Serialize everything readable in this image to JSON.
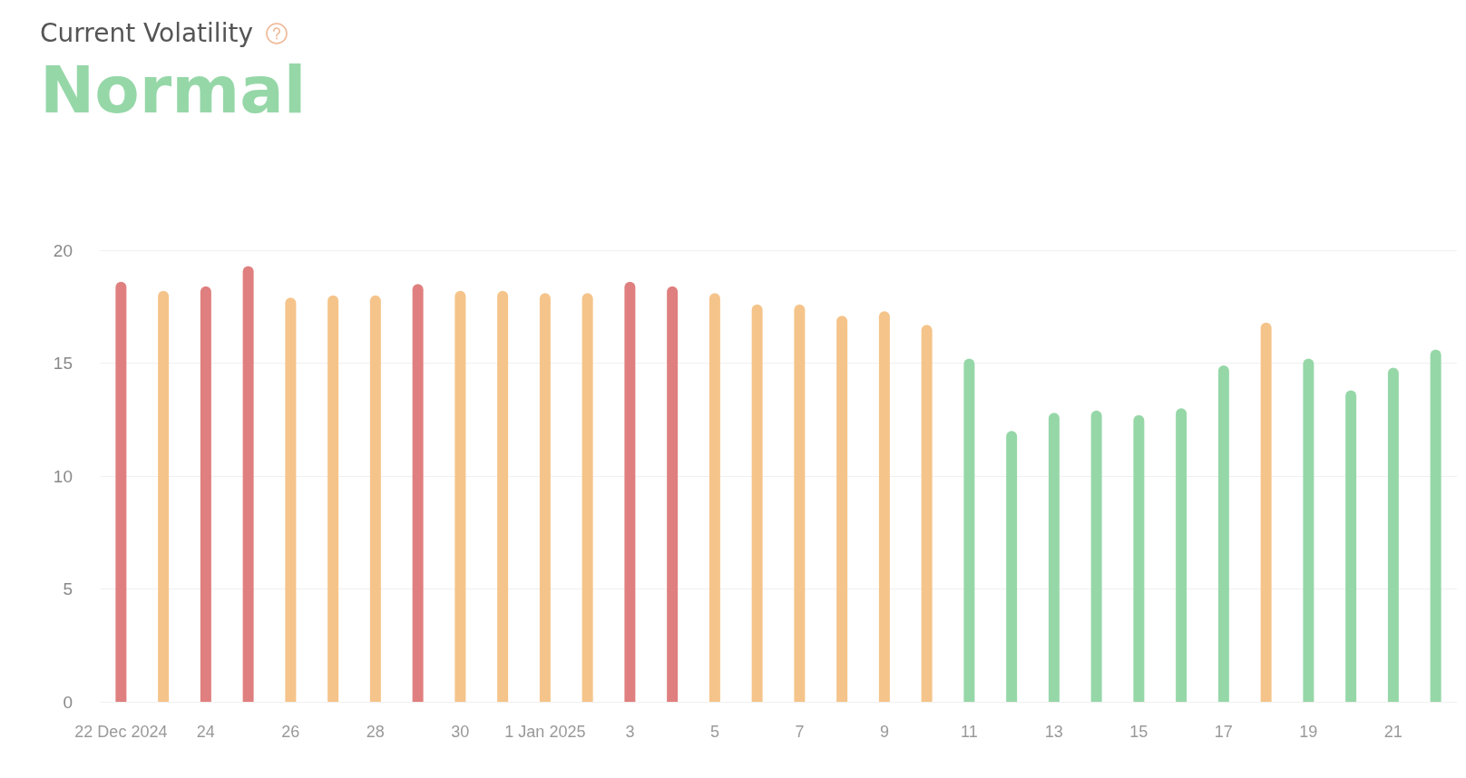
{
  "chart_data": {
    "type": "bar",
    "title": "Current Volatility",
    "subtitle": "Normal",
    "categories": [
      "22 Dec 2024",
      null,
      "24",
      null,
      "26",
      null,
      "28",
      null,
      "30",
      null,
      "1 Jan 2025",
      null,
      "3",
      null,
      "5",
      null,
      "7",
      null,
      "9",
      null,
      "11",
      null,
      "13",
      null,
      "15",
      null,
      "17",
      null,
      "19",
      null,
      "21",
      null
    ],
    "values": [
      18.6,
      18.2,
      18.4,
      19.3,
      17.9,
      18.0,
      18.0,
      18.5,
      18.2,
      18.2,
      18.1,
      18.1,
      18.6,
      18.4,
      18.1,
      17.6,
      17.6,
      17.1,
      17.3,
      16.7,
      15.2,
      12.0,
      12.8,
      12.9,
      12.7,
      13.0,
      14.9,
      16.8,
      15.2,
      13.8,
      14.8,
      15.6
    ],
    "colors": [
      "#e07f7f",
      "#f5c48a",
      "#e07f7f",
      "#e07f7f",
      "#f5c48a",
      "#f5c48a",
      "#f5c48a",
      "#e07f7f",
      "#f5c48a",
      "#f5c48a",
      "#f5c48a",
      "#f5c48a",
      "#e07f7f",
      "#e07f7f",
      "#f5c48a",
      "#f5c48a",
      "#f5c48a",
      "#f5c48a",
      "#f5c48a",
      "#f5c48a",
      "#96d7a8",
      "#96d7a8",
      "#96d7a8",
      "#96d7a8",
      "#96d7a8",
      "#96d7a8",
      "#96d7a8",
      "#f5c48a",
      "#96d7a8",
      "#96d7a8",
      "#96d7a8",
      "#96d7a8"
    ],
    "ylim": [
      0,
      20
    ],
    "yticks": [
      0,
      5,
      10,
      15,
      20
    ],
    "grid": "y"
  }
}
